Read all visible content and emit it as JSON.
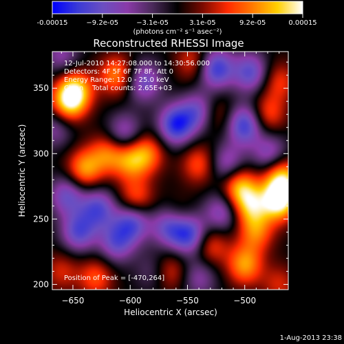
{
  "colorbar": {
    "tick_labels": [
      "-0.00015",
      "−9.2e-05",
      "−3.1e-05",
      "3.1e-05",
      "9.2e-05",
      "0.00015"
    ],
    "unit_label": "(photons cm⁻² s⁻¹ asec⁻²)",
    "colormap": [
      "#0000ff",
      "#3a3ad6",
      "#6b4fc2",
      "#8a3aa8",
      "#4a2a5a",
      "#000000",
      "#7a0a00",
      "#ff2a00",
      "#ff7a00",
      "#ffd000",
      "#ffffff"
    ]
  },
  "chart_data": {
    "type": "heatmap",
    "title": "Reconstructed RHESSI Image",
    "xlabel": "Heliocentric X (arcsec)",
    "ylabel": "Heliocentric Y (arcsec)",
    "xlim": [
      -668,
      -462
    ],
    "ylim": [
      196,
      378
    ],
    "x_ticks": [
      -650,
      -600,
      -550,
      -500
    ],
    "y_ticks": [
      200,
      250,
      300,
      350
    ],
    "x_tick_labels": [
      "−650",
      "−600",
      "−550",
      "−500"
    ],
    "y_tick_labels": [
      "200",
      "250",
      "300",
      "350"
    ],
    "grid": false,
    "annotations": [
      "12-Jul-2010 14:27:08.000 to 14:30:56.000",
      "Detectors: 4F 5F 6F 7F 8F, Att 0",
      "Energy Range: 12.0 - 25.0 keV",
      "Clean    Total counts: 2.65E+03"
    ],
    "peak_label": "Position of Peak = [-470,264]",
    "peak": [
      -470,
      264
    ],
    "value_range": [
      -0.00015,
      0.00015
    ],
    "sources": [
      {
        "x": -470,
        "y": 264,
        "value": 0.00015
      },
      {
        "x": -468,
        "y": 282,
        "value": 0.00012
      },
      {
        "x": -648,
        "y": 348,
        "value": 0.00012
      },
      {
        "x": -655,
        "y": 338,
        "value": 0.0001
      },
      {
        "x": -612,
        "y": 360,
        "value": 9e-05
      },
      {
        "x": -640,
        "y": 288,
        "value": 0.0001
      },
      {
        "x": -620,
        "y": 300,
        "value": 8e-05
      },
      {
        "x": -600,
        "y": 295,
        "value": 9e-05
      },
      {
        "x": -585,
        "y": 300,
        "value": 8e-05
      },
      {
        "x": -540,
        "y": 292,
        "value": 7e-05
      },
      {
        "x": -505,
        "y": 275,
        "value": 0.00011
      },
      {
        "x": -495,
        "y": 260,
        "value": 0.0001
      },
      {
        "x": -490,
        "y": 240,
        "value": 8e-05
      },
      {
        "x": -500,
        "y": 215,
        "value": 0.0001
      },
      {
        "x": -530,
        "y": 230,
        "value": 7e-05
      },
      {
        "x": -560,
        "y": 250,
        "value": 7e-05
      },
      {
        "x": -595,
        "y": 265,
        "value": 8e-05
      },
      {
        "x": -630,
        "y": 205,
        "value": 7e-05
      },
      {
        "x": -565,
        "y": 210,
        "value": 6e-05
      },
      {
        "x": -660,
        "y": 210,
        "value": 5e-05
      },
      {
        "x": -480,
        "y": 330,
        "value": 7e-05
      },
      {
        "x": -470,
        "y": 355,
        "value": 6e-05
      },
      {
        "x": -545,
        "y": 370,
        "value": 6e-05
      },
      {
        "x": -525,
        "y": 330,
        "value": 5e-05
      },
      {
        "x": -470,
        "y": 200,
        "value": 5e-05
      },
      {
        "x": -495,
        "y": 362,
        "value": -0.0001
      },
      {
        "x": -525,
        "y": 365,
        "value": -0.00012
      },
      {
        "x": -560,
        "y": 322,
        "value": -0.00013
      },
      {
        "x": -540,
        "y": 332,
        "value": -9e-05
      },
      {
        "x": -500,
        "y": 322,
        "value": -0.00012
      },
      {
        "x": -478,
        "y": 300,
        "value": -8e-05
      },
      {
        "x": -565,
        "y": 245,
        "value": -0.00013
      },
      {
        "x": -548,
        "y": 238,
        "value": -0.00012
      },
      {
        "x": -598,
        "y": 248,
        "value": -0.00011
      },
      {
        "x": -628,
        "y": 258,
        "value": -0.0001
      },
      {
        "x": -645,
        "y": 240,
        "value": -0.0001
      },
      {
        "x": -655,
        "y": 268,
        "value": -9e-05
      },
      {
        "x": -612,
        "y": 232,
        "value": -9e-05
      },
      {
        "x": -588,
        "y": 355,
        "value": -9e-05
      },
      {
        "x": -605,
        "y": 315,
        "value": -8e-05
      },
      {
        "x": -515,
        "y": 292,
        "value": -8e-05
      },
      {
        "x": -520,
        "y": 255,
        "value": -8e-05
      },
      {
        "x": -540,
        "y": 205,
        "value": -6e-05
      },
      {
        "x": -665,
        "y": 320,
        "value": -6e-05
      },
      {
        "x": -660,
        "y": 375,
        "value": -6e-05
      },
      {
        "x": -580,
        "y": 210,
        "value": -4e-05
      }
    ]
  },
  "footer": {
    "timestamp": "1-Aug-2013 23:38"
  }
}
